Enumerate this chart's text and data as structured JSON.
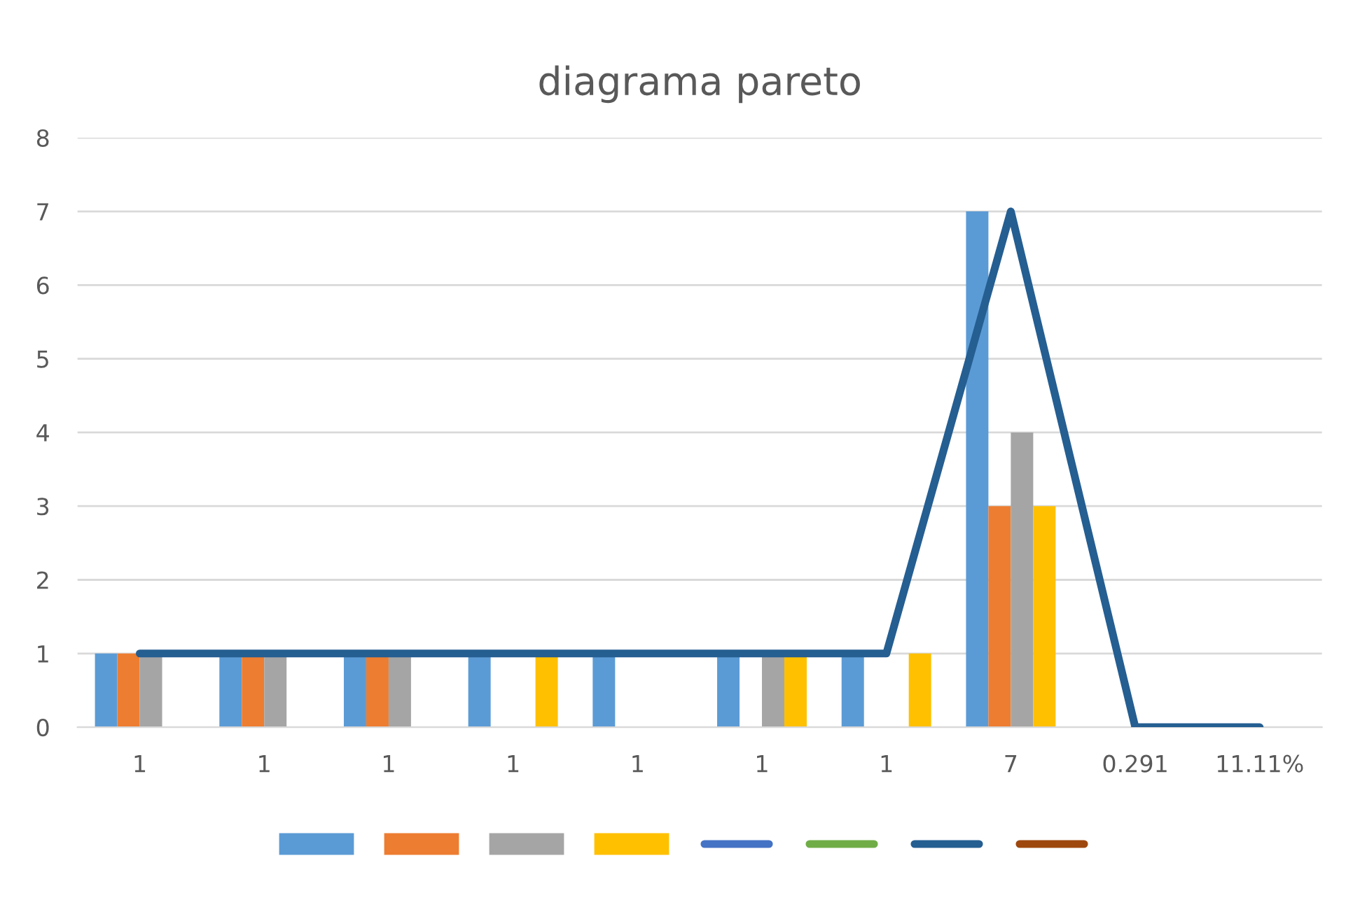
{
  "chart_data": {
    "type": "bar",
    "title": "diagrama pareto",
    "categories": [
      "1",
      "1",
      "1",
      "1",
      "1",
      "1",
      "1",
      "7",
      "0.291",
      "11.11%"
    ],
    "series": [
      {
        "color": "#5b9bd5",
        "values": [
          1,
          1,
          1,
          1,
          1,
          1,
          1,
          7,
          null,
          null
        ]
      },
      {
        "color": "#ed7d31",
        "values": [
          1,
          1,
          1,
          null,
          null,
          null,
          null,
          3,
          null,
          null
        ]
      },
      {
        "color": "#a5a5a5",
        "values": [
          1,
          1,
          1,
          null,
          null,
          1,
          null,
          4,
          null,
          null
        ]
      },
      {
        "color": "#ffc000",
        "values": [
          null,
          null,
          null,
          1,
          null,
          1,
          1,
          3,
          null,
          null
        ]
      },
      {
        "type": "line",
        "color": "#4472c4",
        "values": [
          null,
          null,
          null,
          null,
          null,
          null,
          null,
          null,
          null,
          null
        ]
      },
      {
        "type": "line",
        "color": "#70ad47",
        "values": [
          null,
          null,
          null,
          null,
          null,
          null,
          null,
          null,
          null,
          null
        ]
      },
      {
        "type": "line",
        "color": "#255e91",
        "values": [
          1,
          1,
          1,
          1,
          1,
          1,
          1,
          7,
          0,
          0
        ]
      },
      {
        "type": "line",
        "color": "#9e480e",
        "values": [
          null,
          null,
          null,
          null,
          null,
          null,
          null,
          null,
          null,
          null
        ]
      }
    ],
    "ylim": [
      0,
      8
    ],
    "yticks": [
      0,
      1,
      2,
      3,
      4,
      5,
      6,
      7,
      8
    ],
    "grid": "y"
  }
}
